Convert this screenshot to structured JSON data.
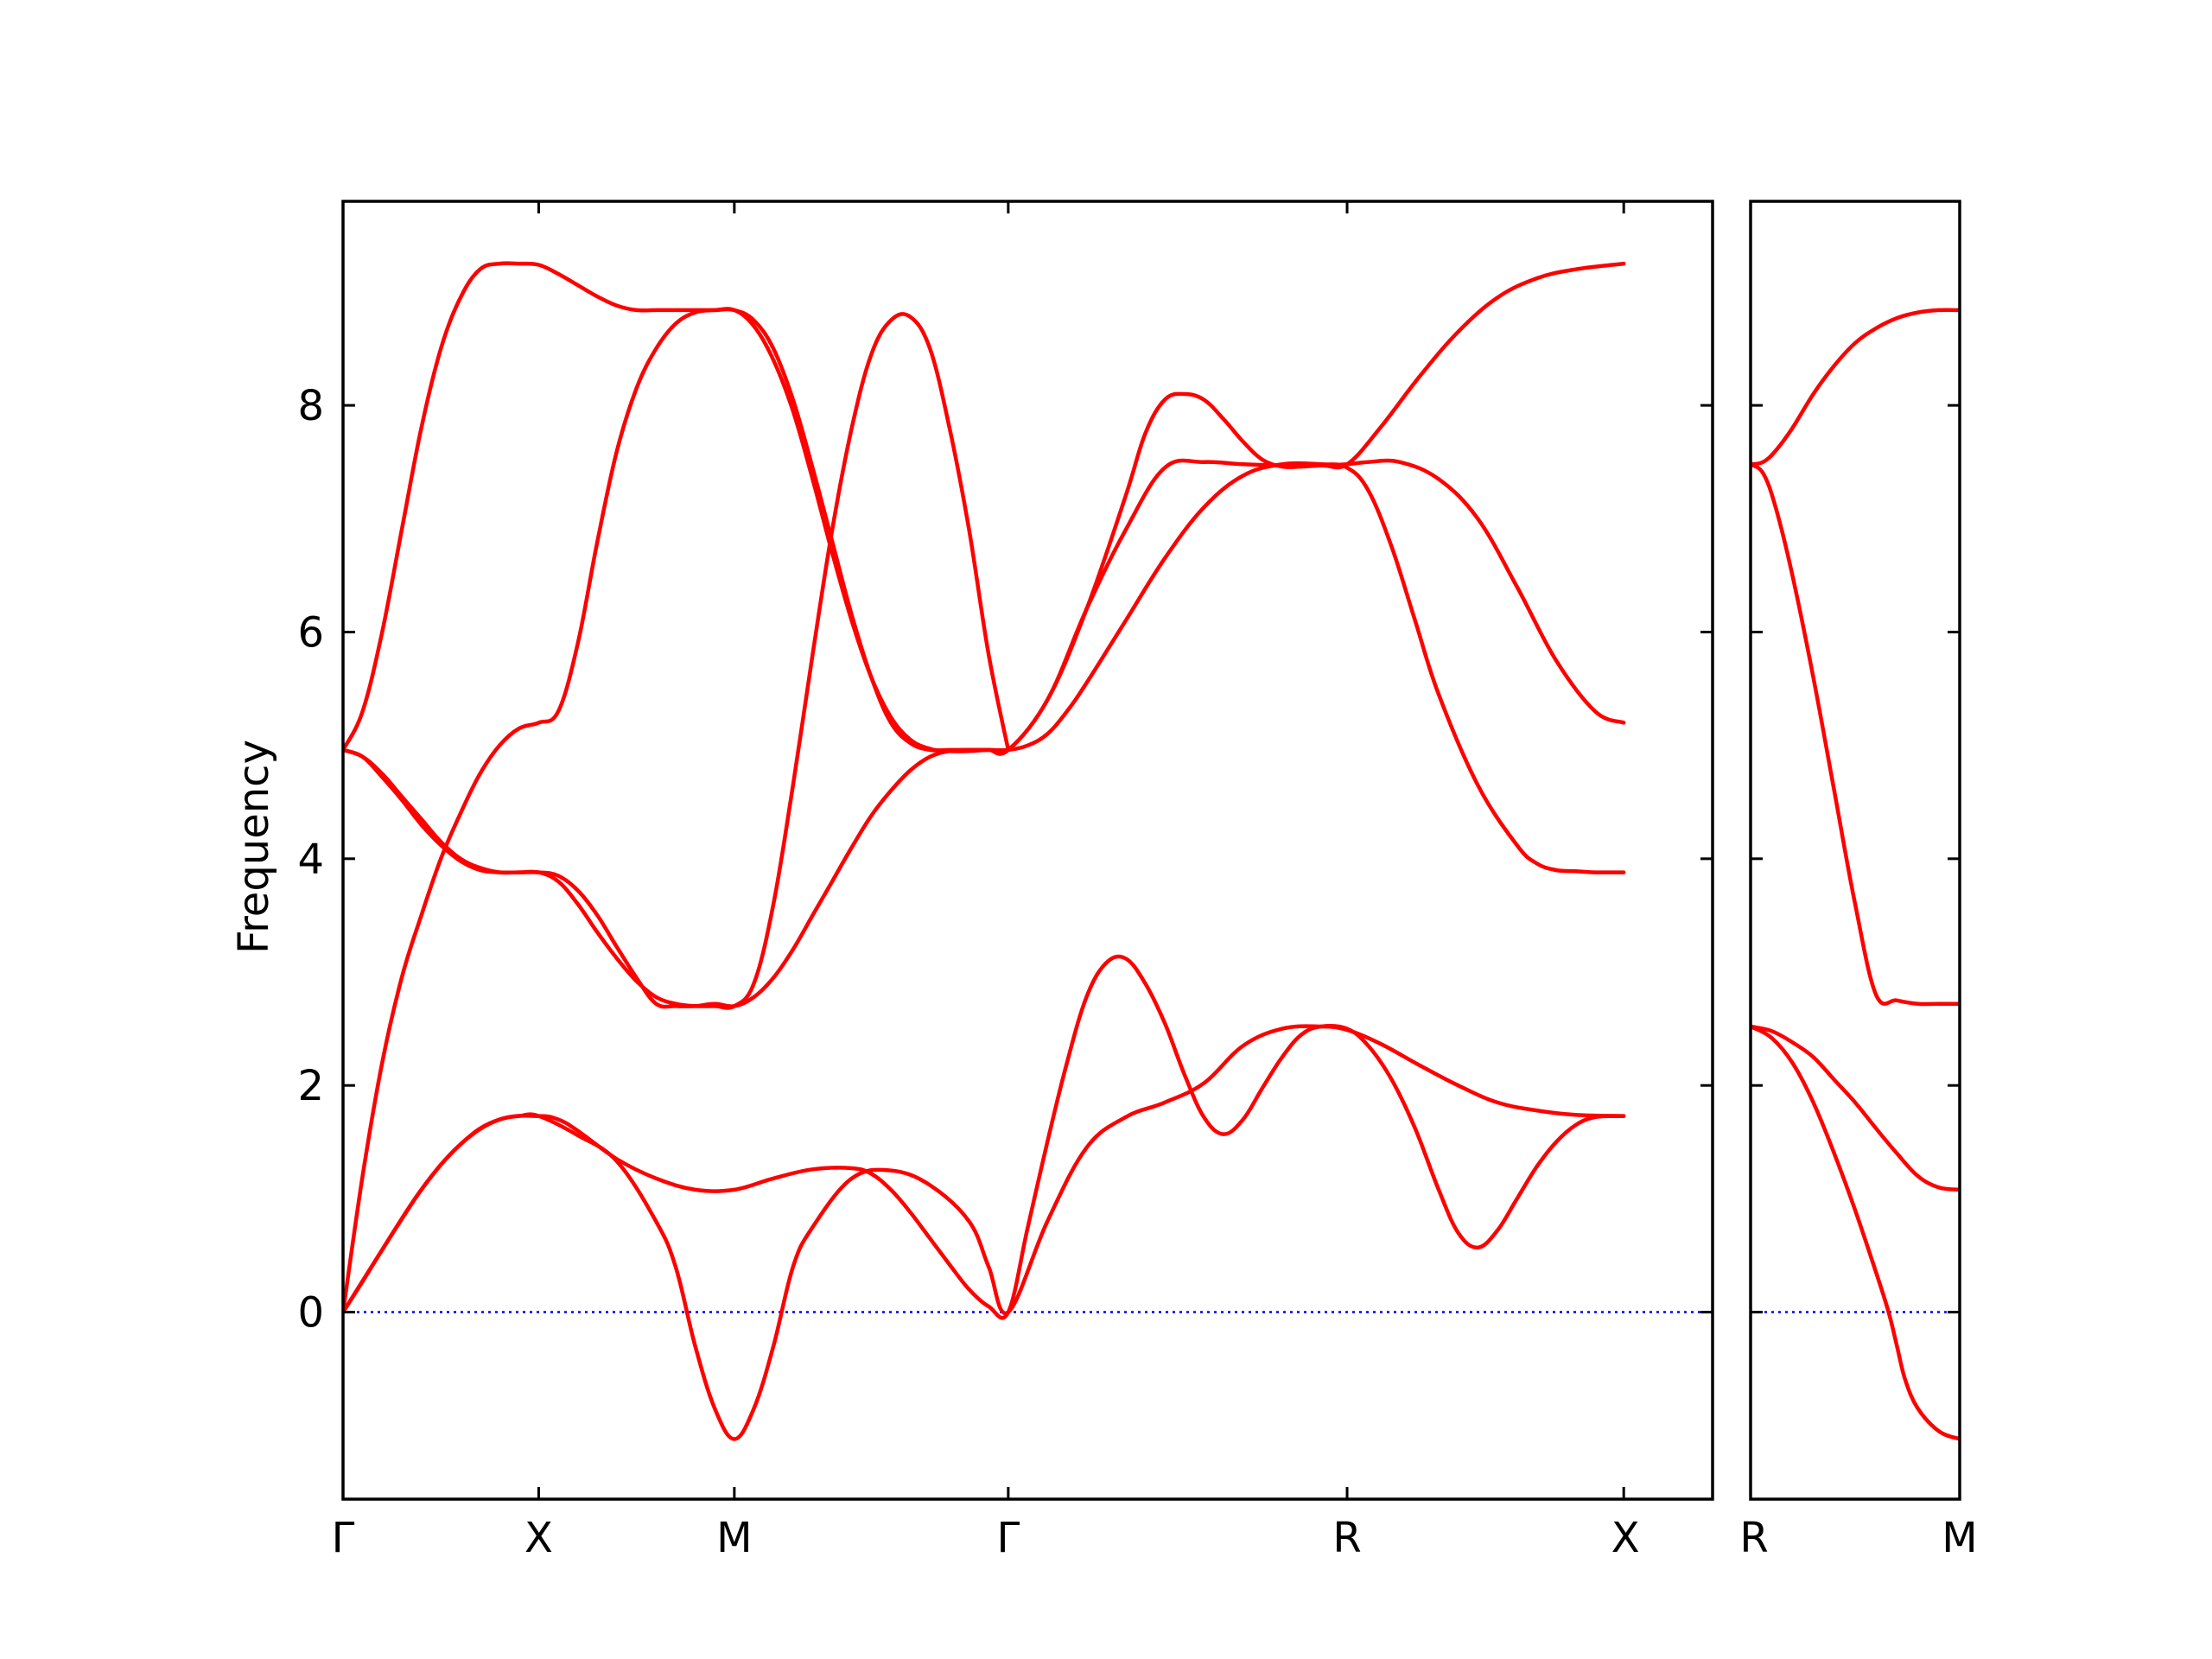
{
  "chart_data": {
    "type": "line",
    "title": "",
    "ylabel": "Frequency",
    "ylim": [
      -1.65,
      9.8
    ],
    "yticks": [
      0,
      2,
      4,
      6,
      8
    ],
    "ytick_labels": [
      "0",
      "2",
      "4",
      "6",
      "8"
    ],
    "grid": false,
    "colors": {
      "bands": "#ff0000",
      "zero_line": "#0000ff",
      "frame": "#000000"
    },
    "panels": [
      {
        "xlim": [
          0,
          3.5
        ],
        "high_symmetry_points": [
          {
            "label": "Γ",
            "x": 0
          },
          {
            "label": "X",
            "x": 0.5
          },
          {
            "label": "M",
            "x": 1.0
          },
          {
            "label": "Γ",
            "x": 1.7
          },
          {
            "label": "R",
            "x": 2.566
          },
          {
            "label": "X",
            "x": 3.273
          }
        ],
        "bands": [
          {
            "x": [
              0,
              0.05,
              0.1,
              0.15,
              0.2,
              0.25,
              0.3,
              0.35,
              0.4,
              0.45,
              0.5,
              0.6,
              0.7,
              0.8,
              0.85,
              0.9,
              0.95,
              1.0,
              1.05,
              1.1,
              1.15,
              1.2,
              1.3,
              1.4,
              1.5,
              1.6,
              1.65,
              1.7,
              1.8,
              1.9,
              2.0,
              2.1,
              2.2,
              2.3,
              2.4,
              2.5,
              2.566,
              2.65,
              2.75,
              2.85,
              2.95,
              3.05,
              3.15,
              3.273
            ],
            "y": [
              0,
              0.27,
              0.55,
              0.82,
              1.08,
              1.3,
              1.48,
              1.62,
              1.7,
              1.73,
              1.73,
              1.56,
              1.33,
              0.8,
              0.4,
              -0.3,
              -0.85,
              -1.12,
              -0.85,
              -0.3,
              0.4,
              0.75,
              1.18,
              1.25,
              1.12,
              0.8,
              0.4,
              0,
              0.8,
              1.45,
              1.72,
              1.85,
              2.02,
              2.35,
              2.5,
              2.52,
              2.49,
              2.37,
              2.18,
              2.0,
              1.85,
              1.78,
              1.74,
              1.73
            ]
          },
          {
            "x": [
              0,
              0.1,
              0.2,
              0.3,
              0.4,
              0.5,
              0.55,
              0.6,
              0.7,
              0.8,
              0.9,
              1.0,
              1.1,
              1.2,
              1.3,
              1.35,
              1.4,
              1.45,
              1.5,
              1.55,
              1.6,
              1.65,
              1.7,
              1.75,
              1.8,
              1.85,
              1.9,
              1.95,
              2.0,
              2.05,
              2.1,
              2.15,
              2.2,
              2.25,
              2.3,
              2.35,
              2.4,
              2.45,
              2.5,
              2.566,
              2.62,
              2.68,
              2.74,
              2.8,
              2.85,
              2.9,
              2.95,
              3.0,
              3.05,
              3.1,
              3.15,
              3.2,
              3.273
            ],
            "y": [
              0,
              0.55,
              1.08,
              1.48,
              1.7,
              1.73,
              1.7,
              1.6,
              1.35,
              1.18,
              1.08,
              1.08,
              1.18,
              1.26,
              1.27,
              1.22,
              1.08,
              0.88,
              0.65,
              0.42,
              0.2,
              0.05,
              0,
              0.75,
              1.5,
              2.2,
              2.78,
              3.08,
              3.12,
              2.9,
              2.55,
              2.1,
              1.72,
              1.57,
              1.7,
              1.98,
              2.25,
              2.45,
              2.52,
              2.5,
              2.35,
              2.05,
              1.62,
              1.08,
              0.7,
              0.57,
              0.72,
              1.0,
              1.28,
              1.5,
              1.65,
              1.72,
              1.73
            ]
          },
          {
            "x": [
              0,
              0.05,
              0.1,
              0.15,
              0.2,
              0.25,
              0.3,
              0.35,
              0.4,
              0.45,
              0.5,
              0.55,
              0.6,
              0.65,
              0.7,
              0.75,
              0.8,
              0.85,
              0.9,
              0.95,
              1.0,
              1.05,
              1.1,
              1.15,
              1.2,
              1.25,
              1.3,
              1.35,
              1.4,
              1.45,
              1.5,
              1.55,
              1.6,
              1.65,
              1.7,
              1.75,
              1.8,
              1.85,
              1.9,
              2.0,
              2.1,
              2.2,
              2.3,
              2.4,
              2.5,
              2.566,
              2.62,
              2.68,
              2.74,
              2.8,
              2.9,
              3.0,
              3.05,
              3.1,
              3.15,
              3.2,
              3.273
            ],
            "y": [
              0,
              1.2,
              2.2,
              2.95,
              3.5,
              4.0,
              4.4,
              4.75,
              5.0,
              5.15,
              5.2,
              5.3,
              5.9,
              6.8,
              7.6,
              8.15,
              8.5,
              8.72,
              8.82,
              8.84,
              8.84,
              8.7,
              8.4,
              7.95,
              7.35,
              6.7,
              6.1,
              5.6,
              5.25,
              5.05,
              4.97,
              4.95,
              4.95,
              4.96,
              4.96,
              5.0,
              5.1,
              5.3,
              5.55,
              6.1,
              6.65,
              7.1,
              7.38,
              7.48,
              7.48,
              7.45,
              7.25,
              6.75,
              6.1,
              5.45,
              4.65,
              4.12,
              3.96,
              3.9,
              3.89,
              3.88,
              3.88
            ]
          },
          {
            "x": [
              0,
              0.05,
              0.1,
              0.15,
              0.2,
              0.25,
              0.3,
              0.35,
              0.4,
              0.45,
              0.5,
              0.55,
              0.6,
              0.65,
              0.7,
              0.75,
              0.8,
              0.85,
              0.9,
              0.95,
              1.0,
              1.05,
              1.1,
              1.15,
              1.2,
              1.25,
              1.3,
              1.35,
              1.4,
              1.45,
              1.5,
              1.55,
              1.6,
              1.65,
              1.7,
              1.8,
              1.9,
              2.0,
              2.05,
              2.1,
              2.15,
              2.2,
              2.25,
              2.3,
              2.35,
              2.4,
              2.45,
              2.5,
              2.566,
              2.62,
              2.7,
              2.8,
              2.9,
              3.0,
              3.1,
              3.2,
              3.273
            ],
            "y": [
              4.96,
              4.9,
              4.75,
              4.55,
              4.35,
              4.15,
              4.0,
              3.92,
              3.88,
              3.88,
              3.88,
              3.85,
              3.72,
              3.5,
              3.22,
              2.95,
              2.72,
              2.7,
              2.7,
              2.72,
              2.7,
              2.78,
              2.95,
              3.2,
              3.5,
              3.8,
              4.1,
              4.38,
              4.6,
              4.78,
              4.9,
              4.95,
              4.96,
              4.96,
              4.96,
              5.4,
              6.2,
              7.2,
              7.75,
              8.05,
              8.1,
              8.05,
              7.88,
              7.68,
              7.52,
              7.46,
              7.46,
              7.47,
              7.48,
              7.5,
              7.5,
              7.35,
              7.0,
              6.4,
              5.75,
              5.3,
              5.2
            ]
          },
          {
            "x": [
              0,
              0.05,
              0.1,
              0.15,
              0.2,
              0.25,
              0.3,
              0.35,
              0.4,
              0.45,
              0.5,
              0.55,
              0.6,
              0.65,
              0.7,
              0.75,
              0.8,
              0.85,
              0.9,
              0.95,
              1.0,
              1.05,
              1.1,
              1.15,
              1.2,
              1.25,
              1.3,
              1.35,
              1.4,
              1.45,
              1.5,
              1.55,
              1.6,
              1.65,
              1.7
            ],
            "y": [
              4.96,
              4.9,
              4.72,
              4.52,
              4.3,
              4.12,
              3.98,
              3.9,
              3.88,
              3.88,
              3.88,
              3.8,
              3.6,
              3.35,
              3.12,
              2.92,
              2.78,
              2.72,
              2.7,
              2.7,
              2.7,
              2.9,
              3.6,
              4.65,
              5.8,
              6.9,
              7.8,
              8.45,
              8.75,
              8.78,
              8.5,
              7.8,
              6.9,
              5.8,
              4.96
            ]
          },
          {
            "x": [
              0,
              0.05,
              0.1,
              0.15,
              0.2,
              0.25,
              0.3,
              0.35,
              0.4,
              0.45,
              0.5,
              0.55,
              0.6,
              0.65,
              0.7,
              0.75,
              0.8,
              0.85,
              0.9,
              0.95,
              1.0,
              1.05,
              1.1,
              1.15,
              1.2,
              1.25,
              1.3,
              1.35,
              1.4,
              1.45,
              1.5,
              1.55,
              1.6,
              1.65,
              1.7,
              1.8,
              1.9,
              2.0,
              2.1,
              2.2,
              2.3,
              2.4,
              2.5,
              2.566,
              2.65,
              2.75,
              2.85,
              2.95,
              3.05,
              3.15,
              3.273
            ],
            "y": [
              4.96,
              5.3,
              6.0,
              6.9,
              7.8,
              8.5,
              8.95,
              9.2,
              9.25,
              9.25,
              9.24,
              9.16,
              9.06,
              8.96,
              8.88,
              8.84,
              8.84,
              8.84,
              8.84,
              8.84,
              8.84,
              8.75,
              8.5,
              8.05,
              7.45,
              6.8,
              6.15,
              5.6,
              5.2,
              5.02,
              4.96,
              4.96,
              4.96,
              4.96,
              4.96,
              5.4,
              6.2,
              6.9,
              7.45,
              7.5,
              7.48,
              7.47,
              7.47,
              7.48,
              7.8,
              8.25,
              8.65,
              8.95,
              9.12,
              9.2,
              9.25
            ]
          }
        ]
      },
      {
        "xlim": [
          0,
          0.5
        ],
        "high_symmetry_points": [
          {
            "label": "R",
            "x": 0
          },
          {
            "label": "M",
            "x": 0.5
          }
        ],
        "bands": [
          {
            "x": [
              0,
              0.05,
              0.1,
              0.15,
              0.2,
              0.25,
              0.3,
              0.33,
              0.35,
              0.37,
              0.4,
              0.45,
              0.5
            ],
            "y": [
              2.52,
              2.42,
              2.2,
              1.85,
              1.4,
              0.9,
              0.35,
              0,
              -0.3,
              -0.6,
              -0.85,
              -1.05,
              -1.12
            ]
          },
          {
            "x": [
              0,
              0.05,
              0.1,
              0.15,
              0.2,
              0.25,
              0.3,
              0.35,
              0.4,
              0.45,
              0.5
            ],
            "y": [
              2.52,
              2.48,
              2.38,
              2.25,
              2.05,
              1.85,
              1.62,
              1.4,
              1.2,
              1.1,
              1.08
            ]
          },
          {
            "x": [
              0,
              0.03,
              0.06,
              0.1,
              0.15,
              0.2,
              0.25,
              0.3,
              0.35,
              0.4,
              0.45,
              0.5
            ],
            "y": [
              7.48,
              7.4,
              7.1,
              6.5,
              5.6,
              4.6,
              3.6,
              2.8,
              2.75,
              2.72,
              2.72,
              2.72
            ]
          },
          {
            "x": [
              0,
              0.03,
              0.06,
              0.1,
              0.15,
              0.2,
              0.25,
              0.3,
              0.35,
              0.4,
              0.45,
              0.5
            ],
            "y": [
              7.48,
              7.5,
              7.6,
              7.8,
              8.1,
              8.35,
              8.55,
              8.68,
              8.77,
              8.82,
              8.84,
              8.84
            ]
          }
        ]
      }
    ]
  }
}
